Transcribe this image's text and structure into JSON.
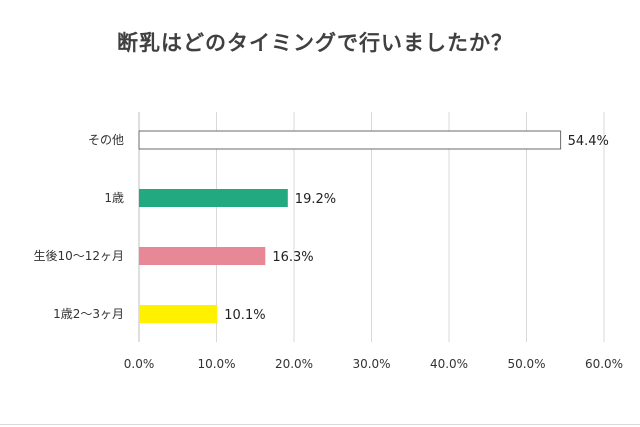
{
  "chart_data": {
    "type": "bar",
    "orientation": "horizontal",
    "title": "断乳はどのタイミングで行いましたか？",
    "categories": [
      "その他",
      "1歳",
      "生後10〜12ヶ月",
      "1歳2〜3ヶ月"
    ],
    "values": [
      54.4,
      19.2,
      16.3,
      10.1
    ],
    "value_labels": [
      "54.4%",
      "19.2%",
      "16.3%",
      "10.1%"
    ],
    "colors": [
      "#ffffff",
      "#23a97f",
      "#e88796",
      "#fff100"
    ],
    "xlim": [
      0,
      60
    ],
    "x_ticks": [
      0,
      10,
      20,
      30,
      40,
      50,
      60
    ],
    "x_tick_labels": [
      "0.0%",
      "10.0%",
      "20.0%",
      "30.0%",
      "40.0%",
      "50.0%",
      "60.0%"
    ],
    "grid": "vertical",
    "xlabel": "",
    "ylabel": ""
  }
}
